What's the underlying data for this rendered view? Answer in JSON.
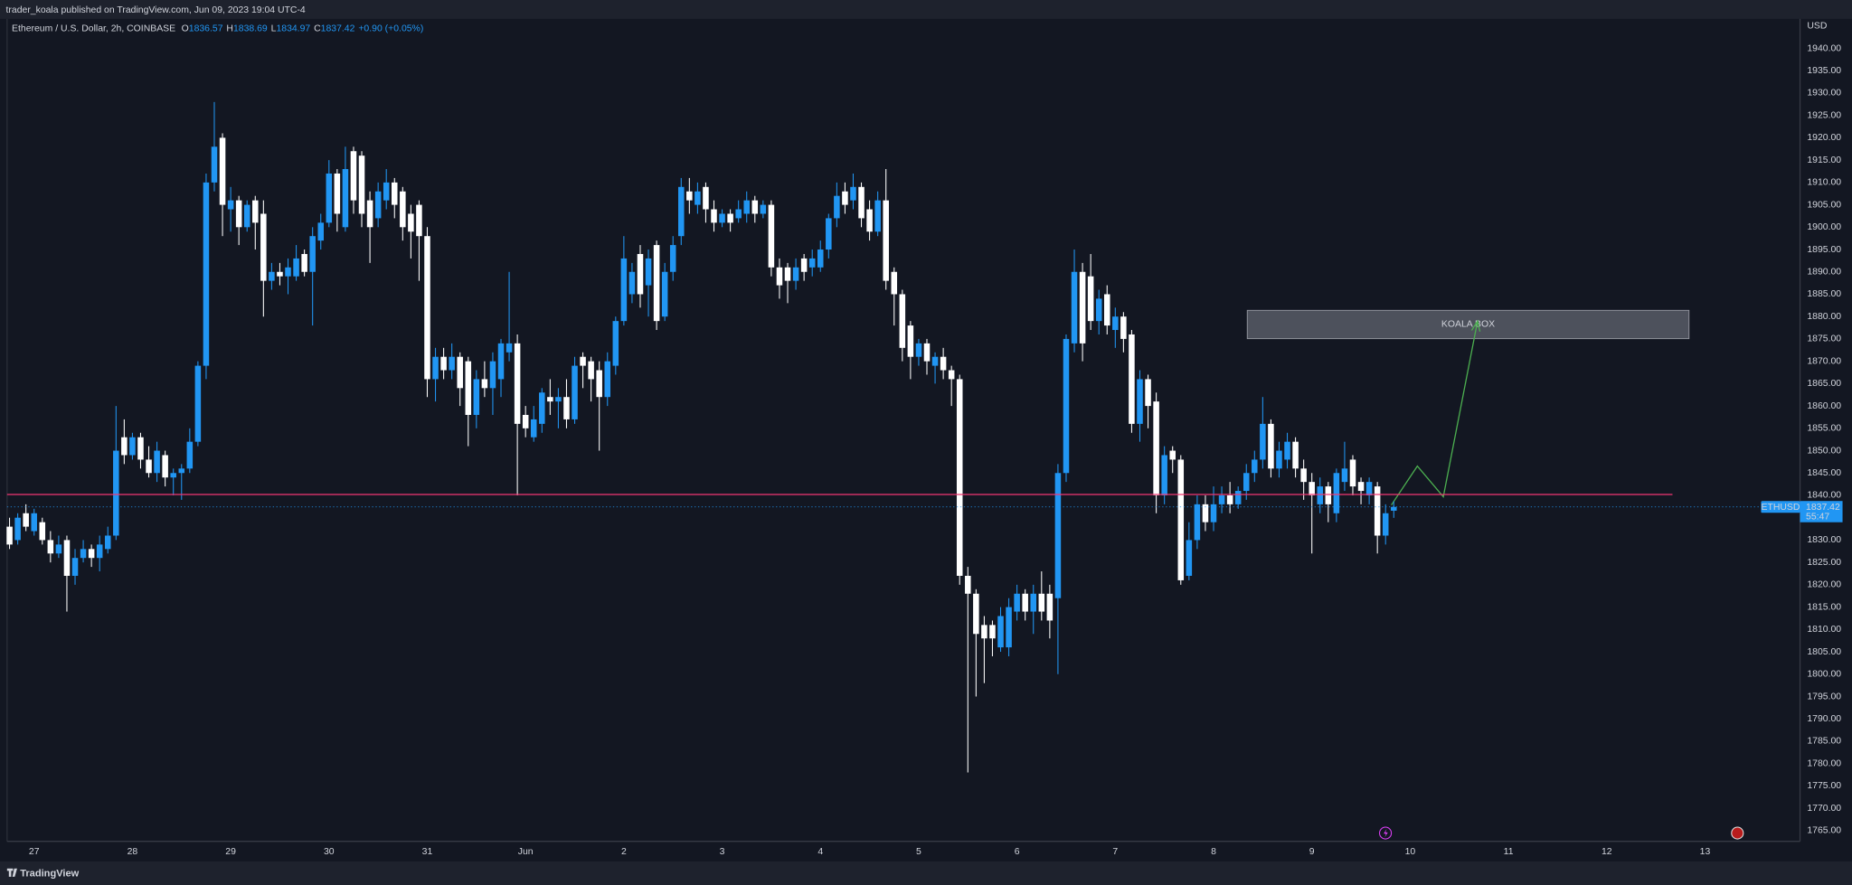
{
  "header": {
    "published": "trader_koala published on TradingView.com, Jun 09, 2023 19:04 UTC-4"
  },
  "footer": {
    "brand": "TradingView"
  },
  "chart_data": {
    "type": "candlestick",
    "legend": {
      "title": "Ethereum / U.S. Dollar, 2h, COINBASE",
      "ohlc_labels": [
        "O",
        "H",
        "L",
        "C"
      ],
      "change": "+0.90 (+0.05%)"
    },
    "symbol": "ETHUSD",
    "countdown": "55:47",
    "currency": "USD",
    "up_color": "#2196f3",
    "down_color": "#ffffff",
    "hline": {
      "value": 1840.2,
      "color": "#f23672"
    },
    "annotation": "KOALA BOX",
    "grid": false,
    "xlim": [
      -0.3,
      218.6
    ],
    "xticks": [
      {
        "value": 3,
        "label": "27"
      },
      {
        "value": 15,
        "label": "28"
      },
      {
        "value": 27,
        "label": "29"
      },
      {
        "value": 39,
        "label": "30"
      },
      {
        "value": 51,
        "label": "31"
      },
      {
        "value": 63,
        "label": "Jun"
      },
      {
        "value": 75,
        "label": "2"
      },
      {
        "value": 87,
        "label": "3"
      },
      {
        "value": 99,
        "label": "4"
      },
      {
        "value": 111,
        "label": "5"
      },
      {
        "value": 123,
        "label": "6"
      },
      {
        "value": 135,
        "label": "7"
      },
      {
        "value": 147,
        "label": "8"
      },
      {
        "value": 159,
        "label": "9"
      },
      {
        "value": 171,
        "label": "10"
      },
      {
        "value": 183,
        "label": "11"
      },
      {
        "value": 195,
        "label": "12"
      },
      {
        "value": 207,
        "label": "13"
      }
    ],
    "ylim": [
      1762.6,
      1946.6
    ],
    "yticks": [
      {
        "value": 1765,
        "label": "1765.00"
      },
      {
        "value": 1770,
        "label": "1770.00"
      },
      {
        "value": 1775,
        "label": "1775.00"
      },
      {
        "value": 1780,
        "label": "1780.00"
      },
      {
        "value": 1785,
        "label": "1785.00"
      },
      {
        "value": 1790,
        "label": "1790.00"
      },
      {
        "value": 1795,
        "label": "1795.00"
      },
      {
        "value": 1800,
        "label": "1800.00"
      },
      {
        "value": 1805,
        "label": "1805.00"
      },
      {
        "value": 1810,
        "label": "1810.00"
      },
      {
        "value": 1815,
        "label": "1815.00"
      },
      {
        "value": 1820,
        "label": "1820.00"
      },
      {
        "value": 1825,
        "label": "1825.00"
      },
      {
        "value": 1830,
        "label": "1830.00"
      },
      {
        "value": 1835,
        "label": "1835.00"
      },
      {
        "value": 1840,
        "label": "1840.00"
      },
      {
        "value": 1845,
        "label": "1845.00"
      },
      {
        "value": 1850,
        "label": "1850.00"
      },
      {
        "value": 1855,
        "label": "1855.00"
      },
      {
        "value": 1860,
        "label": "1860.00"
      },
      {
        "value": 1865,
        "label": "1865.00"
      },
      {
        "value": 1870,
        "label": "1870.00"
      },
      {
        "value": 1875,
        "label": "1875.00"
      },
      {
        "value": 1880,
        "label": "1880.00"
      },
      {
        "value": 1885,
        "label": "1885.00"
      },
      {
        "value": 1890,
        "label": "1890.00"
      },
      {
        "value": 1895,
        "label": "1895.00"
      },
      {
        "value": 1900,
        "label": "1900.00"
      },
      {
        "value": 1905,
        "label": "1905.00"
      },
      {
        "value": 1910,
        "label": "1910.00"
      },
      {
        "value": 1915,
        "label": "1915.00"
      },
      {
        "value": 1920,
        "label": "1920.00"
      },
      {
        "value": 1925,
        "label": "1925.00"
      },
      {
        "value": 1930,
        "label": "1930.00"
      },
      {
        "value": 1935,
        "label": "1935.00"
      },
      {
        "value": 1940,
        "label": "1940.00"
      }
    ],
    "open": [
      1833,
      1830,
      1836,
      1832,
      1834,
      1830,
      1827,
      1830,
      1822,
      1826,
      1828,
      1826,
      1828,
      1831,
      1853,
      1849,
      1853,
      1848,
      1845,
      1849,
      1844,
      1845,
      1846,
      1852,
      1869,
      1910,
      1920,
      1904,
      1906,
      1900,
      1906,
      1903,
      1888,
      1890,
      1889,
      1889,
      1894,
      1890,
      1897,
      1901,
      1912,
      1900,
      1917,
      1916,
      1906,
      1902,
      1906,
      1910,
      1908,
      1903,
      1905,
      1898,
      1866,
      1871,
      1868,
      1871,
      1870,
      1858,
      1866,
      1864,
      1866,
      1872,
      1874,
      1858,
      1853,
      1856,
      1862,
      1861,
      1862,
      1857,
      1871,
      1870,
      1868,
      1862,
      1869,
      1879,
      1885,
      1894,
      1887,
      1896,
      1880,
      1890,
      1898,
      1908,
      1905,
      1909,
      1904,
      1901,
      1903,
      1902,
      1903,
      1906,
      1903,
      1905,
      1891,
      1891,
      1888,
      1893,
      1891,
      1891,
      1895,
      1902,
      1908,
      1906,
      1909,
      1904,
      1899,
      1906,
      1890,
      1885,
      1878,
      1871,
      1874,
      1869,
      1871,
      1868,
      1866,
      1822,
      1818,
      1811,
      1811,
      1806,
      1806,
      1814,
      1818,
      1814,
      1818,
      1818,
      1817,
      1845,
      1874,
      1890,
      1889,
      1879,
      1885,
      1877,
      1880,
      1876,
      1856,
      1866,
      1861,
      1840,
      1850,
      1848,
      1822,
      1830,
      1838,
      1834,
      1838,
      1840,
      1838,
      1841,
      1845,
      1848,
      1856,
      1846,
      1848,
      1852,
      1846,
      1843,
      1838,
      1842,
      1836,
      1843,
      1848,
      1843,
      1840,
      1842,
      1831,
      1836.57
    ],
    "high": [
      1835,
      1836,
      1838,
      1837,
      1835,
      1832,
      1831,
      1831,
      1828,
      1830,
      1829,
      1831,
      1833,
      1860,
      1857,
      1854,
      1854,
      1851,
      1852,
      1850,
      1846,
      1847,
      1855,
      1870,
      1912,
      1928,
      1921,
      1909,
      1907,
      1906,
      1907,
      1906,
      1892,
      1892,
      1893,
      1896,
      1895,
      1900,
      1903,
      1915,
      1913,
      1918,
      1918,
      1917,
      1908,
      1910,
      1913,
      1911,
      1909,
      1905,
      1906,
      1900,
      1873,
      1873,
      1874,
      1872,
      1871,
      1868,
      1870,
      1872,
      1875,
      1890,
      1876,
      1860,
      1860,
      1864,
      1866,
      1864,
      1866,
      1871,
      1872,
      1871,
      1870,
      1872,
      1880,
      1898,
      1892,
      1896,
      1895,
      1897,
      1892,
      1898,
      1911,
      1911,
      1910,
      1910,
      1906,
      1904,
      1904,
      1906,
      1908,
      1907,
      1906,
      1906,
      1893,
      1892,
      1893,
      1894,
      1895,
      1897,
      1903,
      1910,
      1910,
      1912,
      1910,
      1906,
      1908,
      1913,
      1891,
      1886,
      1879,
      1875,
      1875,
      1872,
      1873,
      1869,
      1867,
      1824,
      1819,
      1813,
      1812,
      1815,
      1817,
      1820,
      1819,
      1820,
      1823,
      1820,
      1847,
      1876,
      1895,
      1892,
      1894,
      1886,
      1887,
      1882,
      1881,
      1877,
      1868,
      1867,
      1863,
      1851,
      1851,
      1849,
      1834,
      1840,
      1840,
      1842,
      1842,
      1843,
      1842,
      1847,
      1850,
      1862,
      1857,
      1852,
      1854,
      1853,
      1848,
      1845,
      1844,
      1843,
      1846,
      1852,
      1849,
      1844,
      1844,
      1843,
      1838,
      1838.69
    ],
    "low": [
      1828,
      1829,
      1832,
      1831,
      1829,
      1825,
      1826,
      1814,
      1820,
      1825,
      1824,
      1823,
      1827,
      1830,
      1847,
      1848,
      1846,
      1844,
      1843,
      1842,
      1840,
      1839,
      1845,
      1851,
      1866,
      1908,
      1898,
      1899,
      1896,
      1899,
      1895,
      1880,
      1886,
      1887,
      1885,
      1888,
      1889,
      1878,
      1895,
      1900,
      1899,
      1899,
      1903,
      1900,
      1892,
      1900,
      1904,
      1902,
      1897,
      1893,
      1888,
      1862,
      1861,
      1866,
      1866,
      1860,
      1851,
      1855,
      1862,
      1858,
      1862,
      1870,
      1840,
      1853,
      1852,
      1854,
      1858,
      1855,
      1855,
      1856,
      1864,
      1861,
      1850,
      1860,
      1867,
      1878,
      1883,
      1882,
      1880,
      1877,
      1879,
      1888,
      1896,
      1903,
      1903,
      1901,
      1899,
      1900,
      1899,
      1901,
      1901,
      1901,
      1902,
      1889,
      1884,
      1883,
      1886,
      1888,
      1889,
      1890,
      1893,
      1900,
      1903,
      1904,
      1900,
      1897,
      1898,
      1886,
      1878,
      1870,
      1866,
      1869,
      1867,
      1865,
      1866,
      1860,
      1820,
      1778,
      1795,
      1798,
      1804,
      1805,
      1804,
      1812,
      1812,
      1809,
      1812,
      1808,
      1800,
      1843,
      1872,
      1870,
      1877,
      1876,
      1876,
      1873,
      1872,
      1854,
      1852,
      1855,
      1836,
      1838,
      1845,
      1820,
      1821,
      1828,
      1832,
      1832,
      1836,
      1836,
      1837,
      1839,
      1843,
      1846,
      1844,
      1844,
      1846,
      1844,
      1839,
      1827,
      1836,
      1834,
      1834,
      1841,
      1840,
      1838,
      1838,
      1827,
      1829,
      1834.97
    ],
    "close": [
      1829,
      1835,
      1833,
      1836,
      1830,
      1827,
      1829,
      1822,
      1826,
      1828,
      1826,
      1829,
      1831,
      1850,
      1849,
      1853,
      1848,
      1845,
      1850,
      1844,
      1845,
      1846,
      1852,
      1869,
      1910,
      1918,
      1905,
      1906,
      1900,
      1905,
      1901,
      1888,
      1890,
      1889,
      1891,
      1893,
      1890,
      1898,
      1901,
      1912,
      1903,
      1913,
      1906,
      1903,
      1900,
      1908,
      1910,
      1905,
      1900,
      1899,
      1898,
      1866,
      1871,
      1868,
      1871,
      1864,
      1858,
      1866,
      1864,
      1870,
      1874,
      1874,
      1856,
      1855,
      1857,
      1863,
      1861,
      1862,
      1857,
      1869,
      1869,
      1866,
      1862,
      1870,
      1879,
      1893,
      1890,
      1885,
      1893,
      1879,
      1890,
      1896,
      1909,
      1906,
      1908,
      1904,
      1901,
      1903,
      1901,
      1904,
      1906,
      1903,
      1905,
      1891,
      1887,
      1888,
      1891,
      1890,
      1893,
      1895,
      1902,
      1907,
      1905,
      1909,
      1902,
      1899,
      1906,
      1888,
      1885,
      1873,
      1871,
      1874,
      1870,
      1871,
      1868,
      1866,
      1822,
      1818,
      1809,
      1808,
      1808,
      1813,
      1815,
      1818,
      1814,
      1818,
      1814,
      1812,
      1845,
      1875,
      1890,
      1874,
      1879,
      1884,
      1878,
      1880,
      1875,
      1856,
      1866,
      1860,
      1840,
      1849,
      1848,
      1821,
      1830,
      1838,
      1834,
      1838,
      1840,
      1838,
      1841,
      1845,
      1848,
      1856,
      1846,
      1850,
      1852,
      1846,
      1843,
      1840,
      1842,
      1838,
      1845,
      1846,
      1842,
      1841,
      1843,
      1831,
      1836,
      1837.42
    ]
  }
}
